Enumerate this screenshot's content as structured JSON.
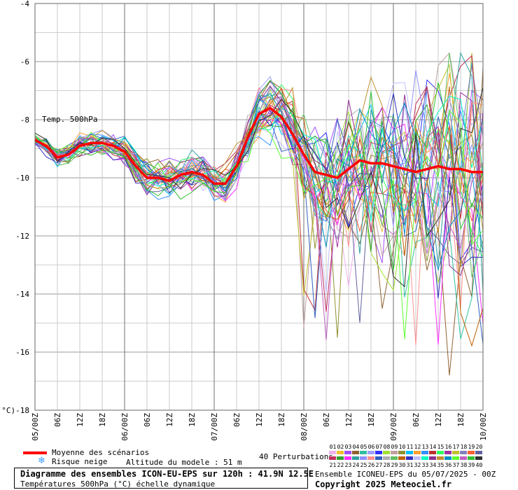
{
  "chart_data": {
    "type": "line",
    "title": "Temp. 500hPa",
    "ylabel": "(°C)",
    "ylim": [
      -18,
      -4
    ],
    "grid": true,
    "yticks": [
      -4,
      -6,
      -8,
      -10,
      -12,
      -14,
      -16,
      -18
    ],
    "ytick_labels": [
      "-4",
      "-6",
      "-8",
      "-10",
      "-12",
      "-14",
      "-16",
      "(°C)-18"
    ],
    "xlim": [
      0,
      120
    ],
    "x_ticks": [
      0,
      6,
      12,
      18,
      24,
      30,
      36,
      42,
      48,
      54,
      60,
      66,
      72,
      78,
      84,
      90,
      96,
      102,
      108,
      114,
      120
    ],
    "x_tick_labels": [
      "05/00Z",
      "06Z",
      "12Z",
      "18Z",
      "06/00Z",
      "06Z",
      "12Z",
      "18Z",
      "07/00Z",
      "06Z",
      "12Z",
      "18Z",
      "08/00Z",
      "06Z",
      "12Z",
      "18Z",
      "09/00Z",
      "06Z",
      "12Z",
      "18Z",
      "10/00Z"
    ],
    "mean_series": {
      "name": "Moyenne des scénarios",
      "color": "#ff0000",
      "x": [
        0,
        3,
        6,
        9,
        12,
        15,
        18,
        21,
        24,
        27,
        30,
        33,
        36,
        39,
        42,
        45,
        48,
        51,
        54,
        57,
        60,
        63,
        66,
        69,
        72,
        75,
        78,
        81,
        84,
        87,
        90,
        93,
        96,
        99,
        102,
        105,
        108,
        111,
        114,
        117,
        120
      ],
      "values": [
        -8.7,
        -8.9,
        -9.3,
        -9.2,
        -8.9,
        -8.8,
        -8.8,
        -8.9,
        -9.1,
        -9.6,
        -10.0,
        -10.0,
        -10.1,
        -9.9,
        -9.8,
        -9.9,
        -10.2,
        -10.2,
        -9.6,
        -8.6,
        -7.8,
        -7.6,
        -7.9,
        -8.5,
        -9.2,
        -9.8,
        -9.9,
        -10.0,
        -9.7,
        -9.4,
        -9.5,
        -9.5,
        -9.6,
        -9.7,
        -9.8,
        -9.7,
        -9.6,
        -9.7,
        -9.7,
        -9.8,
        -9.8
      ]
    },
    "ensemble": {
      "name": "40 Perturbations",
      "count": 40,
      "note": "individual member traces are illegible; drawn as 40 thin colored lines diverging after 08/00Z (spread roughly -16.8 to -6.0 °C)"
    }
  },
  "legend": {
    "mean_label": "Moyenne des scénarios",
    "snow_label": "Risque neige",
    "altitude_label": "Altitude du modele : 51 m",
    "perturbations_label": "40 Perturbations",
    "member_numbers_top": [
      "01",
      "02",
      "03",
      "04",
      "05",
      "06",
      "07",
      "08",
      "09",
      "10",
      "11",
      "12",
      "13",
      "14",
      "15",
      "16",
      "17",
      "18",
      "19",
      "20"
    ],
    "member_numbers_bottom": [
      "21",
      "22",
      "23",
      "24",
      "25",
      "26",
      "27",
      "28",
      "29",
      "30",
      "31",
      "32",
      "33",
      "34",
      "35",
      "36",
      "37",
      "38",
      "39",
      "40"
    ],
    "member_colors_top": [
      "#f0b0f0",
      "#f0c030",
      "#a050ff",
      "#906030",
      "#30c0a0",
      "#a0a0ff",
      "#3030ff",
      "#a0e030",
      "#c0a0a0",
      "#909030",
      "#00c0ff",
      "#ffa030",
      "#3090ff",
      "#c03030",
      "#30ff60",
      "#a030a0",
      "#c0c030",
      "#8080c0",
      "#ff6030",
      "#6060a0"
    ],
    "member_colors_bottom": [
      "#c03060",
      "#30a030",
      "#ff30ff",
      "#30a0a0",
      "#9090ff",
      "#ff9090",
      "#3060c0",
      "#b0b0b0",
      "#60c060",
      "#c06000",
      "#3030c0",
      "#c0c0ff",
      "#00ffc0",
      "#903090",
      "#c09030",
      "#0090c0",
      "#60ff30",
      "#c060c0",
      "#30c030",
      "#303030"
    ]
  },
  "footer": {
    "title_line": "Diagramme des ensembles ICON-EU-EPS sur 120h : 41.9N 12.5E",
    "subtitle_line": "Températures 500hPa (°C) échelle dynamique",
    "ensemble_info": "Ensemble ICONEU-EPS du 05/07/2025 - 00Z",
    "copyright": "Copyright 2025 Meteociel.fr"
  }
}
